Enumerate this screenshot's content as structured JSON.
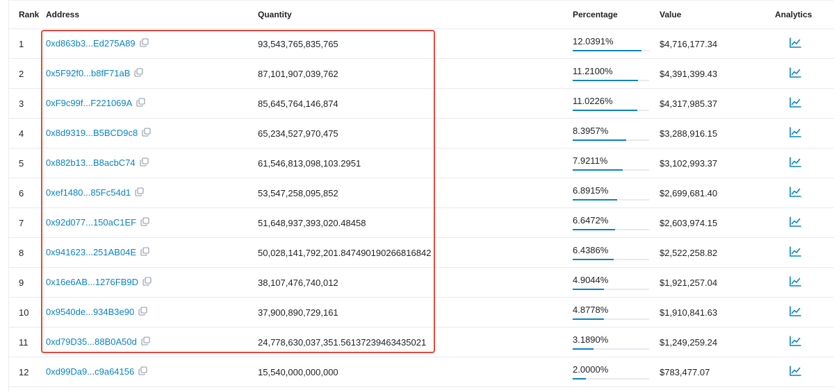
{
  "table": {
    "headers": {
      "rank": "Rank",
      "address": "Address",
      "quantity": "Quantity",
      "percentage": "Percentage",
      "value": "Value",
      "analytics": "Analytics"
    },
    "rows": [
      {
        "rank": "1",
        "address": "0xd863b3...Ed275A89",
        "quantity": "93,543,765,835,765",
        "percentage": "12.0391%",
        "pct_fill": 0.9,
        "value": "$4,716,177.34"
      },
      {
        "rank": "2",
        "address": "0x5F92f0...b8fF71aB",
        "quantity": "87,101,907,039,762",
        "percentage": "11.2100%",
        "pct_fill": 0.855,
        "value": "$4,391,399.43"
      },
      {
        "rank": "3",
        "address": "0xF9c99f...F221069A",
        "quantity": "85,645,764,146,874",
        "percentage": "11.0226%",
        "pct_fill": 0.845,
        "value": "$4,317,985.37"
      },
      {
        "rank": "4",
        "address": "0x8d9319...B5BCD9c8",
        "quantity": "65,234,527,970,475",
        "percentage": "8.3957%",
        "pct_fill": 0.7,
        "value": "$3,288,916.15"
      },
      {
        "rank": "5",
        "address": "0x882b13...B8acbC74",
        "quantity": "61,546,813,098,103.2951",
        "percentage": "7.9211%",
        "pct_fill": 0.655,
        "value": "$3,102,993.37"
      },
      {
        "rank": "6",
        "address": "0xef1480...85Fc54d1",
        "quantity": "53,547,258,095,852",
        "percentage": "6.8915%",
        "pct_fill": 0.58,
        "value": "$2,699,681.40"
      },
      {
        "rank": "7",
        "address": "0x92d077...150aC1EF",
        "quantity": "51,648,937,393,020.48458",
        "percentage": "6.6472%",
        "pct_fill": 0.555,
        "value": "$2,603,974.15"
      },
      {
        "rank": "8",
        "address": "0x941623...251AB04E",
        "quantity": "50,028,141,792,201.847490190266816842",
        "percentage": "6.4386%",
        "pct_fill": 0.54,
        "value": "$2,522,258.82"
      },
      {
        "rank": "9",
        "address": "0x16e6AB...1276FB9D",
        "quantity": "38,107,476,740,012",
        "percentage": "4.9044%",
        "pct_fill": 0.41,
        "value": "$1,921,257.04"
      },
      {
        "rank": "10",
        "address": "0x9540de...934B3e90",
        "quantity": "37,900,890,729,161",
        "percentage": "4.8778%",
        "pct_fill": 0.405,
        "value": "$1,910,841.63"
      },
      {
        "rank": "11",
        "address": "0xd79D35...88B0A50d",
        "quantity": "24,778,630,037,351.56137239463435021",
        "percentage": "3.1890%",
        "pct_fill": 0.27,
        "value": "$1,249,259.24"
      },
      {
        "rank": "12",
        "address": "0xd99Da9...c9a64156",
        "quantity": "15,540,000,000,000",
        "percentage": "2.0000%",
        "pct_fill": 0.17,
        "value": "$783,477.07"
      }
    ]
  },
  "colors": {
    "link": "#0784c3",
    "highlight_box": "#e5483a",
    "row_border": "#e7eaf3"
  },
  "icons": {
    "copy": "copy-icon",
    "analytics": "line-chart-icon"
  }
}
